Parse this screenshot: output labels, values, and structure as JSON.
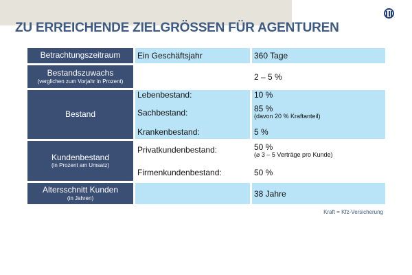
{
  "title": "ZU ERREICHENDE ZIELGRÖSSEN FÜR AGENTUREN",
  "rows": [
    {
      "label": "Betrachtungszeitraum",
      "col2": "Ein Geschäftsjahr",
      "col3": "360 Tage"
    },
    {
      "label": "Bestandszuwachs",
      "sublabel": "(verglichen zum Vorjahr in Prozent)",
      "col3": "2 – 5 %"
    },
    {
      "label": "Bestand",
      "items": [
        {
          "name": "Lebenbestand:",
          "value": "10 %"
        },
        {
          "name": "Sachbestand:",
          "value": "85 %",
          "note": "(davon 20 % Kraftanteil)"
        },
        {
          "name": "Krankenbestand:",
          "value": "5 %"
        }
      ]
    },
    {
      "label": "Kundenbestand",
      "sublabel": "(in Prozent am Umsatz)",
      "items": [
        {
          "name": "Privatkundenbestand:",
          "value": "50 %",
          "note": "(⌀ 3 – 5 Verträge pro Kunde)"
        },
        {
          "name": "Firmenkundenbestand:",
          "value": "50 %"
        }
      ]
    },
    {
      "label": "Altersschnitt Kunden",
      "sublabel": "(in Jahren)",
      "col3": "38 Jahre"
    }
  ],
  "footnote": "Kraft = Kfz-Versicherung"
}
